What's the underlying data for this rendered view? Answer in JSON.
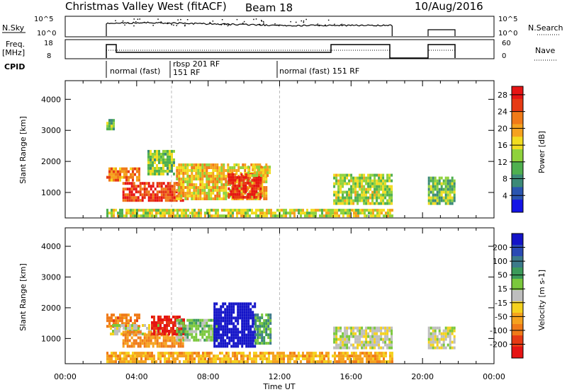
{
  "header": {
    "station": "Christmas Valley West (fitACF)",
    "beam": "Beam 18",
    "date": "10/Aug/2016"
  },
  "summary_panels": {
    "nsky_label": "N.Sky",
    "nsky_ticks": [
      "10^5",
      "10^0"
    ],
    "nsearch_label": "N.Search",
    "nsearch_ticks": [
      "10^5",
      "10^0"
    ],
    "freq_label_1": "Freq.",
    "freq_label_2": "[MHz]",
    "freq_ticks": [
      "18",
      "8"
    ],
    "nave_label": "Nave",
    "nave_ticks": [
      "60",
      "0"
    ],
    "cpid_label": "CPID",
    "cpid_segments": [
      {
        "label": "normal (fast)",
        "start_hour": 2.3
      },
      {
        "label": "rbsp 201 RF",
        "start_hour": 5.95
      },
      {
        "label": "151 RF",
        "start_hour": 5.95
      },
      {
        "label": "normal (fast) 151 RF",
        "start_hour": 12.0
      }
    ]
  },
  "colors": {
    "power_scale": [
      "#1414e6",
      "#2a55b0",
      "#3c8a78",
      "#4fb04f",
      "#8fd23c",
      "#f2dc20",
      "#f5a21e",
      "#f07a18",
      "#e63a14",
      "#e61414"
    ],
    "velocity_scale": [
      "#1414c8",
      "#2a4ab4",
      "#3c7a8a",
      "#3c9a5a",
      "#7ac83c",
      "#bebebe",
      "#f5d21e",
      "#f5a21e",
      "#f07a18",
      "#e63a14",
      "#e61414"
    ]
  },
  "chart_data": [
    {
      "type": "heatmap",
      "title": "Power",
      "ylabel": "Slant Range [km]",
      "xlabel": "Time UT",
      "x_ticks": [
        "00:00",
        "04:00",
        "08:00",
        "12:00",
        "16:00",
        "20:00",
        "00:00"
      ],
      "xlim_hours": [
        0,
        24
      ],
      "y_ticks": [
        1000,
        2000,
        3000,
        4000
      ],
      "ylim": [
        180,
        4600
      ],
      "colorbar_label": "Power [dB]",
      "colorbar_ticks": [
        4,
        8,
        12,
        16,
        20,
        24,
        28
      ],
      "colorbar_range": [
        0,
        30
      ],
      "regions": [
        {
          "t0": 2.3,
          "t1": 4.2,
          "r0": 1350,
          "r1": 1800,
          "value": 22
        },
        {
          "t0": 3.2,
          "t1": 6.6,
          "r0": 700,
          "r1": 1300,
          "value": 26
        },
        {
          "t0": 4.6,
          "t1": 6.1,
          "r0": 1550,
          "r1": 2300,
          "value": 13
        },
        {
          "t0": 6.2,
          "t1": 11.3,
          "r0": 750,
          "r1": 1900,
          "value": 18
        },
        {
          "t0": 9.1,
          "t1": 10.9,
          "r0": 800,
          "r1": 1600,
          "value": 27
        },
        {
          "t0": 10.2,
          "t1": 11.4,
          "r0": 1500,
          "r1": 1850,
          "value": 17
        },
        {
          "t0": 15.0,
          "t1": 18.3,
          "r0": 600,
          "r1": 1550,
          "value": 14
        },
        {
          "t0": 20.3,
          "t1": 21.8,
          "r0": 600,
          "r1": 1500,
          "value": 12
        },
        {
          "t0": 2.3,
          "t1": 18.3,
          "r0": 200,
          "r1": 420,
          "value": 15
        },
        {
          "t0": 2.3,
          "t1": 2.7,
          "r0": 3000,
          "r1": 3350,
          "value": 11
        }
      ]
    },
    {
      "type": "heatmap",
      "title": "Velocity",
      "ylabel": "Slant Range [km]",
      "xlabel": "Time UT",
      "x_ticks": [
        "00:00",
        "04:00",
        "08:00",
        "12:00",
        "16:00",
        "20:00",
        "00:00"
      ],
      "xlim_hours": [
        0,
        24
      ],
      "y_ticks": [
        1000,
        2000,
        3000,
        4000
      ],
      "ylim": [
        180,
        4600
      ],
      "colorbar_label": "Velocity [m s-1]",
      "colorbar_ticks": [
        "200",
        "100",
        "50",
        "15",
        "-15",
        "-50",
        "-100",
        "-200"
      ],
      "regions": [
        {
          "t0": 2.3,
          "t1": 4.2,
          "r0": 1350,
          "r1": 1800,
          "value": -100
        },
        {
          "t0": 2.5,
          "t1": 5.5,
          "r0": 1100,
          "r1": 1400,
          "value": 0
        },
        {
          "t0": 3.2,
          "t1": 6.6,
          "r0": 700,
          "r1": 1200,
          "value": -80
        },
        {
          "t0": 4.8,
          "t1": 6.6,
          "r0": 1100,
          "r1": 1700,
          "value": -180
        },
        {
          "t0": 6.2,
          "t1": 8.5,
          "r0": 900,
          "r1": 1600,
          "value": 30
        },
        {
          "t0": 8.3,
          "t1": 10.6,
          "r0": 700,
          "r1": 2100,
          "value": 180
        },
        {
          "t0": 10.6,
          "t1": 11.5,
          "r0": 800,
          "r1": 1800,
          "value": 60
        },
        {
          "t0": 15.0,
          "t1": 18.3,
          "r0": 650,
          "r1": 1300,
          "value": 0
        },
        {
          "t0": 20.3,
          "t1": 21.8,
          "r0": 650,
          "r1": 1300,
          "value": 0
        },
        {
          "t0": 2.3,
          "t1": 18.3,
          "r0": 200,
          "r1": 500,
          "value": -60
        }
      ]
    }
  ]
}
